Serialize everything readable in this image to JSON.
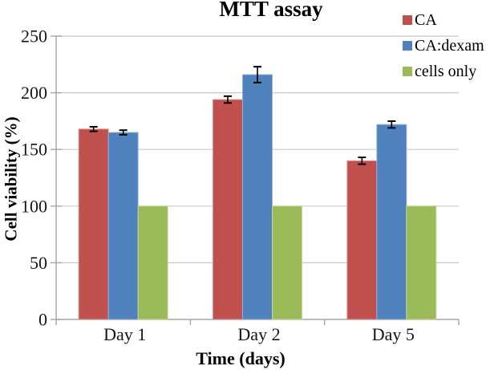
{
  "chart_data": {
    "type": "bar",
    "title": "MTT assay",
    "xlabel": "Time (days)",
    "ylabel": "Cell viability (%)",
    "categories": [
      "Day 1",
      "Day 2",
      "Day 5"
    ],
    "series": [
      {
        "name": "CA",
        "color": "#C0504D",
        "edge": "#D99795",
        "values": [
          168,
          194,
          140
        ],
        "errors": [
          2,
          3,
          3
        ]
      },
      {
        "name": "CA:dexam",
        "color": "#4F81BD",
        "edge": "#95B3D7",
        "values": [
          165,
          216,
          172
        ],
        "errors": [
          2,
          7,
          3
        ]
      },
      {
        "name": "cells only",
        "color": "#9BBB59",
        "edge": "#C3D69B",
        "values": [
          100,
          100,
          100
        ],
        "errors": [
          0,
          0,
          0
        ]
      }
    ],
    "ylim": [
      0,
      250
    ],
    "yticks": [
      0,
      50,
      100,
      150,
      200,
      250
    ],
    "grid": true,
    "legend_position": "top-right",
    "colors": {
      "grid": "#c8c8c8",
      "axis": "#a6a6a6",
      "error": "#000000",
      "text": "#161616"
    }
  }
}
